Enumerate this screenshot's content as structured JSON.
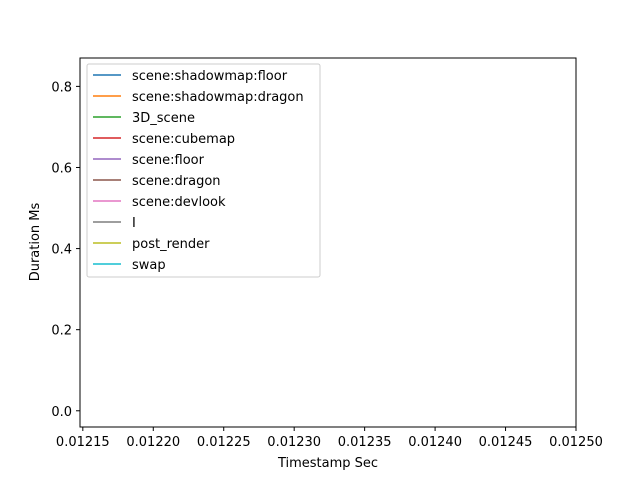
{
  "chart_data": {
    "type": "line",
    "title": "",
    "xlabel": "Timestamp Sec",
    "ylabel": "Duration Ms",
    "xlim": [
      0.012148,
      0.0125
    ],
    "ylim": [
      -0.04,
      0.87
    ],
    "xticks": [
      0.01215,
      0.0122,
      0.01225,
      0.0123,
      0.01235,
      0.0124,
      0.01245,
      0.0125
    ],
    "xtick_labels": [
      "0.01215",
      "0.01220",
      "0.01225",
      "0.01230",
      "0.01235",
      "0.01240",
      "0.01245",
      "0.01250"
    ],
    "yticks": [
      0.0,
      0.2,
      0.4,
      0.6,
      0.8
    ],
    "ytick_labels": [
      "0.0",
      "0.2",
      "0.4",
      "0.6",
      "0.8"
    ],
    "grid": false,
    "legend_position": "top-left",
    "series": [
      {
        "name": "scene:shadowmap:floor",
        "color": "#1f77b4",
        "x": [],
        "y": []
      },
      {
        "name": "scene:shadowmap:dragon",
        "color": "#ff7f0e",
        "x": [],
        "y": []
      },
      {
        "name": "3D_scene",
        "color": "#2ca02c",
        "x": [],
        "y": []
      },
      {
        "name": "scene:cubemap",
        "color": "#d62728",
        "x": [],
        "y": []
      },
      {
        "name": "scene:floor",
        "color": "#9467bd",
        "x": [],
        "y": []
      },
      {
        "name": "scene:dragon",
        "color": "#8c564b",
        "x": [],
        "y": []
      },
      {
        "name": "scene:devlook",
        "color": "#e377c2",
        "x": [],
        "y": []
      },
      {
        "name": "I",
        "color": "#7f7f7f",
        "x": [],
        "y": []
      },
      {
        "name": "post_render",
        "color": "#bcbd22",
        "x": [],
        "y": []
      },
      {
        "name": "swap",
        "color": "#17becf",
        "x": [],
        "y": []
      }
    ]
  }
}
